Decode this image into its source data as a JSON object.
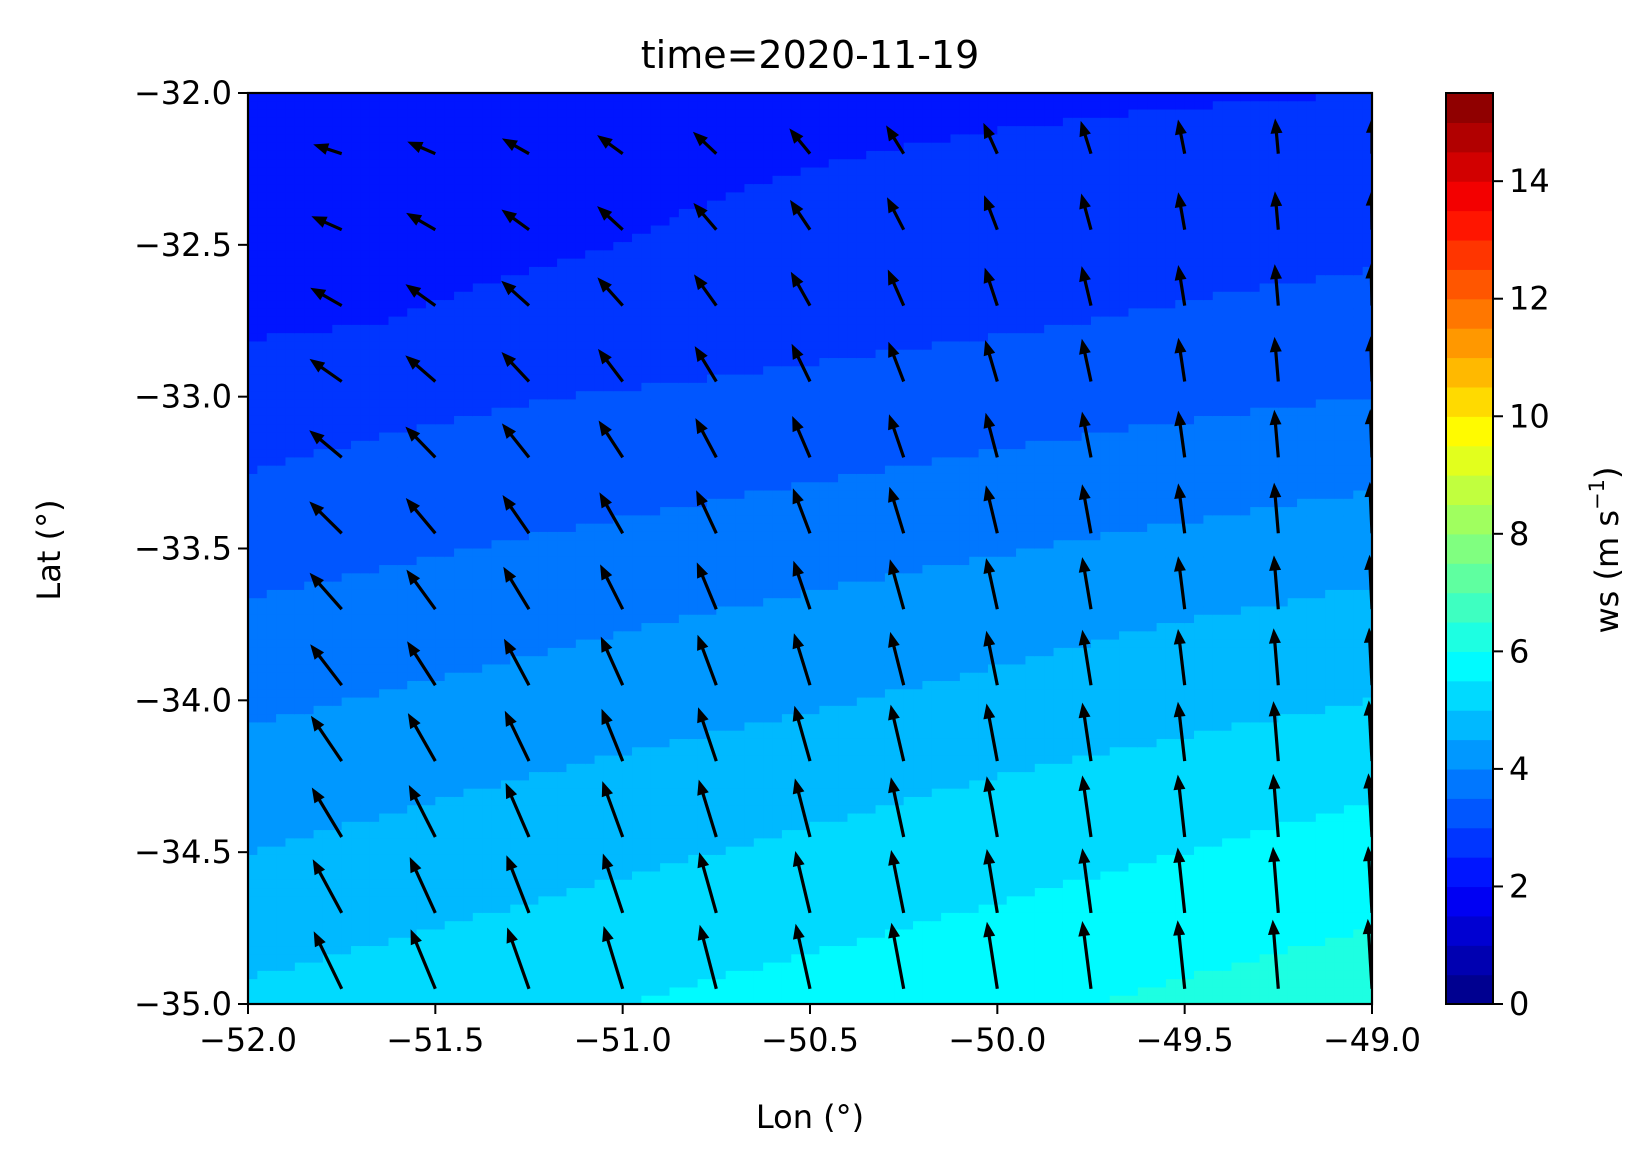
{
  "chart_data": {
    "type": "contourf+quiver",
    "title": "time=2020-11-19",
    "xlabel": "Lon (°)",
    "ylabel": "Lat (°)",
    "xlim": [
      -52.0,
      -49.0
    ],
    "ylim": [
      -35.0,
      -32.0
    ],
    "xticks": [
      -52.0,
      -51.5,
      -51.0,
      -50.5,
      -50.0,
      -49.5,
      -49.0
    ],
    "yticks": [
      -32.0,
      -32.5,
      -33.0,
      -33.5,
      -34.0,
      -34.5,
      -35.0
    ],
    "xtick_labels": [
      "−52.0",
      "−51.5",
      "−51.0",
      "−50.5",
      "−50.0",
      "−49.5",
      "−49.0"
    ],
    "ytick_labels": [
      "−32.0",
      "−32.5",
      "−33.0",
      "−33.5",
      "−34.0",
      "−34.5",
      "−35.0"
    ],
    "colorbar": {
      "label": "ws (m s",
      "label_exponent": "−1",
      "label_close": ")",
      "colormap": "jet",
      "range": [
        0,
        15.5
      ],
      "level_step": 0.5,
      "ticks": [
        0,
        2,
        4,
        6,
        8,
        10,
        12,
        14
      ],
      "tick_labels": [
        "0",
        "2",
        "4",
        "6",
        "8",
        "10",
        "12",
        "14"
      ]
    },
    "contour_fill": {
      "description": "Wind speed contours increasing from ~2 m/s at top-left to ~6 m/s at bottom-right",
      "lon": [
        -52.0,
        -51.75,
        -51.5,
        -51.25,
        -51.0,
        -50.75,
        -50.5,
        -50.25,
        -50.0,
        -49.75,
        -49.5,
        -49.25,
        -49.0
      ],
      "lat": [
        -32.0,
        -32.25,
        -32.5,
        -32.75,
        -33.0,
        -33.25,
        -33.5,
        -33.75,
        -34.0,
        -34.25,
        -34.5,
        -34.75,
        -35.0
      ],
      "ws_left_column": [
        2.3,
        2.3,
        2.3,
        2.4,
        2.8,
        3.0,
        3.3,
        3.6,
        3.9,
        4.2,
        4.5,
        4.8,
        5.1
      ],
      "ws_right_column": [
        2.5,
        2.7,
        2.9,
        3.2,
        3.5,
        3.9,
        4.3,
        4.7,
        5.0,
        5.4,
        5.7,
        6.0,
        6.3
      ]
    },
    "quiver": {
      "lon": [
        -51.75,
        -51.5,
        -51.25,
        -51.0,
        -50.75,
        -50.5,
        -50.25,
        -50.0,
        -49.75,
        -49.5,
        -49.25,
        -49.0
      ],
      "lat": [
        -32.2,
        -32.45,
        -32.7,
        -32.95,
        -33.2,
        -33.45,
        -33.7,
        -33.95,
        -34.2,
        -34.45,
        -34.7,
        -34.95
      ],
      "direction_note": "northwest at top-left turning to north-northwest / north toward the right; speeds increase southward"
    },
    "colors": {
      "arrow": "#000000",
      "axes": "#000000",
      "background": "#ffffff"
    }
  }
}
